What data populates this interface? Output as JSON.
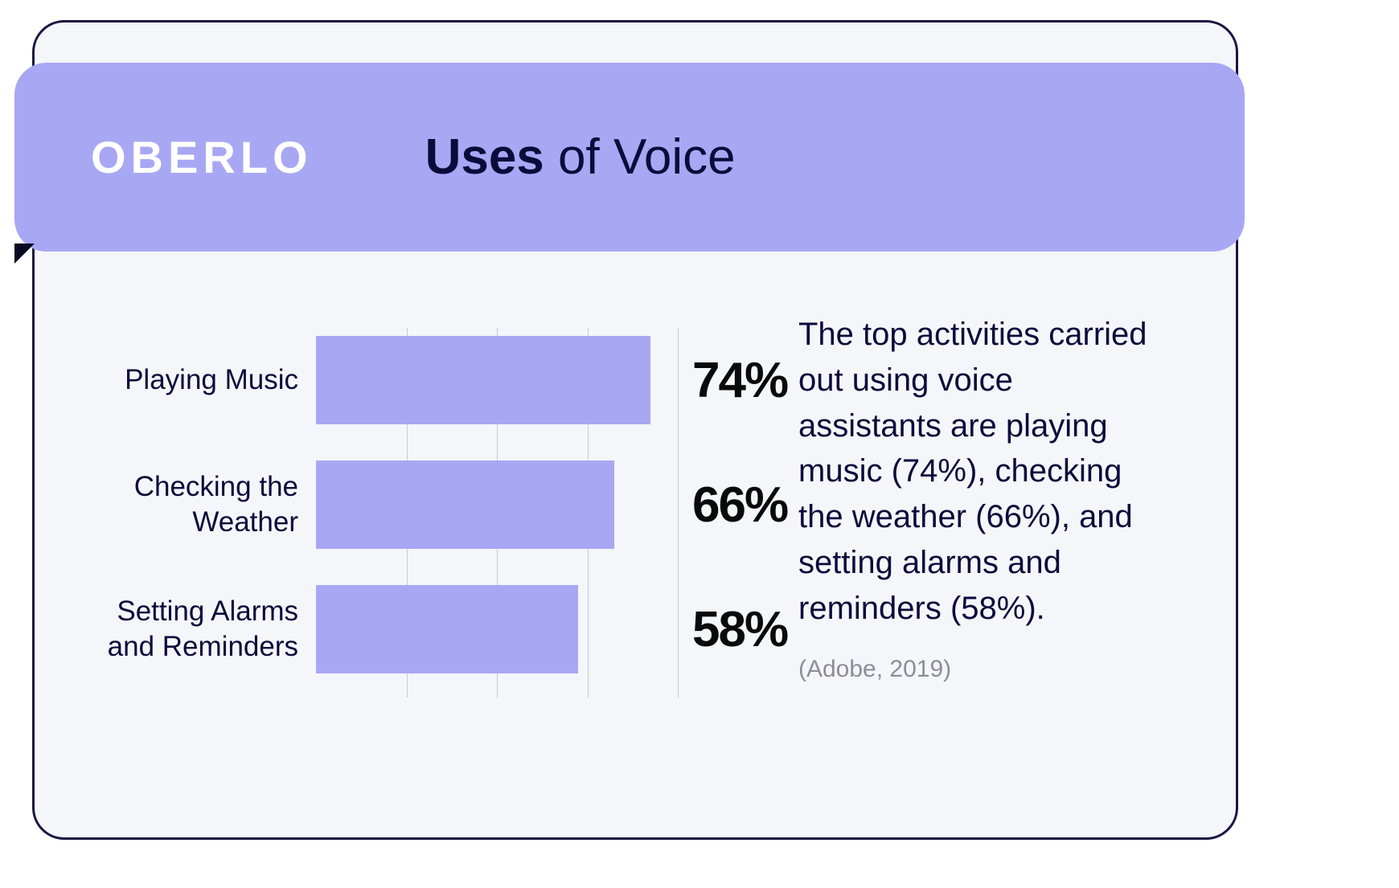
{
  "brand": {
    "logo_text": "OBERLO"
  },
  "header": {
    "title_bold": "Uses",
    "title_rest": " of Voice"
  },
  "chart": {
    "type": "bar-horizontal",
    "xlim": [
      0,
      80
    ],
    "grid_positions_pct": [
      25,
      50,
      75,
      100
    ],
    "bar_color": "#a8a7f3",
    "grid_color": "#c9cad2",
    "label_fontsize": 35,
    "value_fontsize": 62,
    "label_color": "#0b0b3b",
    "value_color": "#0a0a0a",
    "rows": [
      {
        "label": "Playing Music",
        "value": 74,
        "value_label": "74%"
      },
      {
        "label": "Checking the Weather",
        "value": 66,
        "value_label": "66%"
      },
      {
        "label": "Setting Alarms and Reminders",
        "value": 58,
        "value_label": "58%"
      }
    ]
  },
  "description": {
    "text": "The top activities carried out using voice assistants are playing music (74%), checking the weather (66%), and setting alarms and reminders (58%).",
    "source": "(Adobe, 2019)",
    "text_color": "#0b0b3b",
    "text_fontsize": 40,
    "source_color": "#8c8d9a",
    "source_fontsize": 30
  },
  "colors": {
    "card_bg": "#f5f6f9",
    "card_border": "#1a1543",
    "banner_bg": "#a8a7f3",
    "banner_shadow": "#0a0a23",
    "logo_color": "#ffffff",
    "title_color": "#0b0b3b"
  }
}
